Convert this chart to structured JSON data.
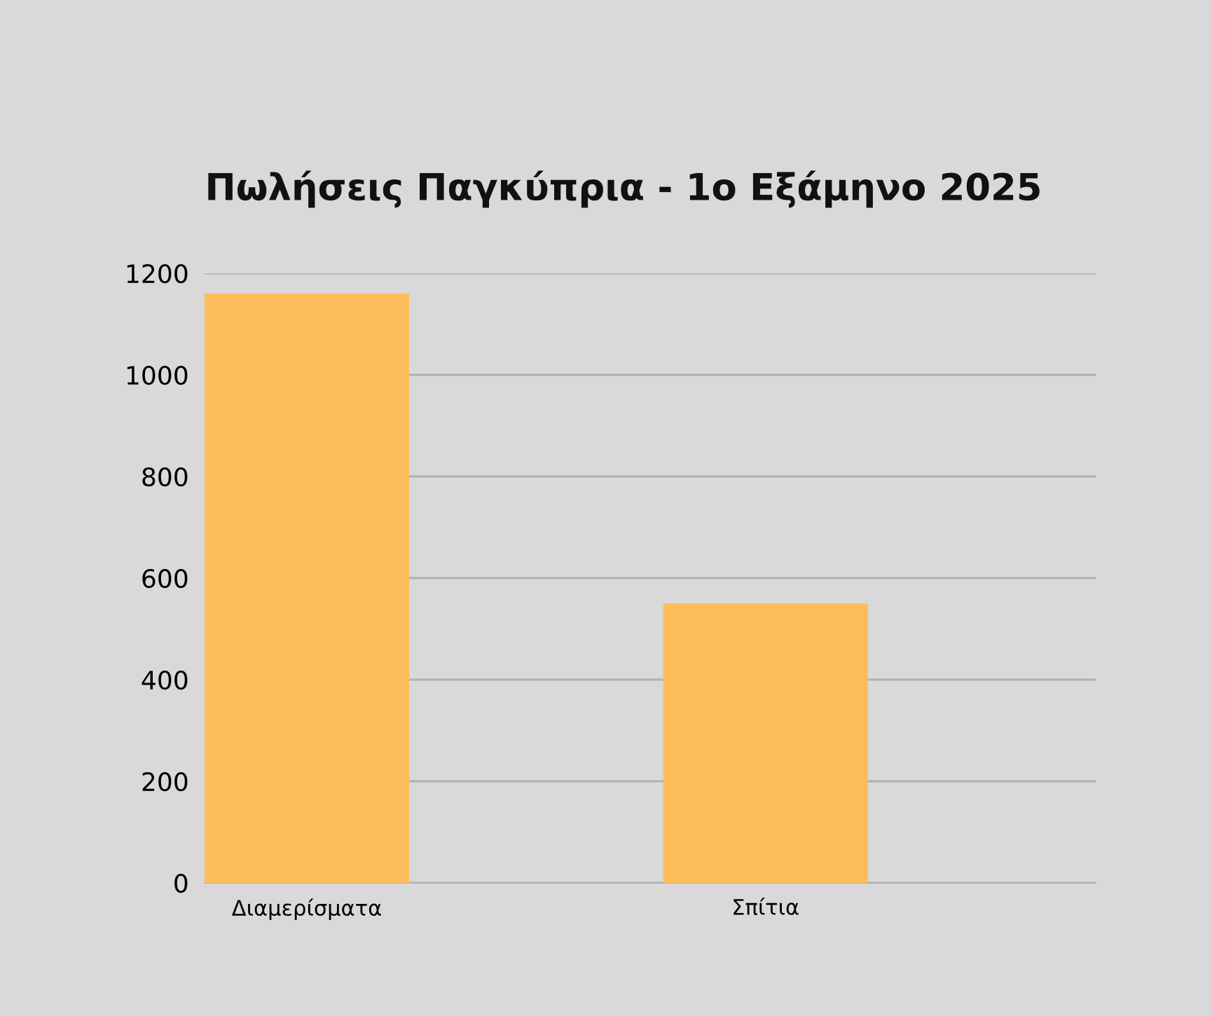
{
  "chart_data": {
    "type": "bar",
    "title": "Πωλήσεις Παγκύπρια - 1ο Εξάμηνο 2025",
    "categories": [
      "Διαμερίσματα",
      "Σπίτια"
    ],
    "values": [
      1160,
      550
    ],
    "color": "#fdbd5b",
    "ylim": [
      0,
      1200
    ],
    "yticks": [
      0,
      200,
      400,
      600,
      800,
      1000,
      1200
    ],
    "grid": "y"
  }
}
